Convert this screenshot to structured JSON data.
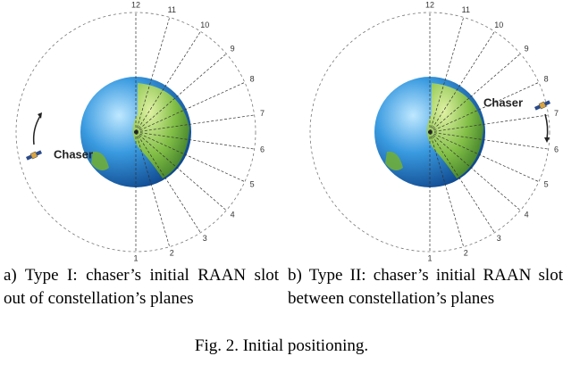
{
  "panels": [
    {
      "labels": [
        "1",
        "2",
        "3",
        "4",
        "5",
        "6",
        "7",
        "8",
        "9",
        "10",
        "11",
        "12"
      ],
      "chaser": "Chaser",
      "caption": "a) Type I: chaser’s initial RAAN slot out of constellation’s planes"
    },
    {
      "labels": [
        "1",
        "2",
        "3",
        "4",
        "5",
        "6",
        "7",
        "8",
        "9",
        "10",
        "11",
        "12"
      ],
      "chaser": "Chaser",
      "caption": "b) Type II: chaser’s initial RAAN slot between constellation’s planes"
    }
  ],
  "figure_caption": "Fig. 2. Initial positioning."
}
